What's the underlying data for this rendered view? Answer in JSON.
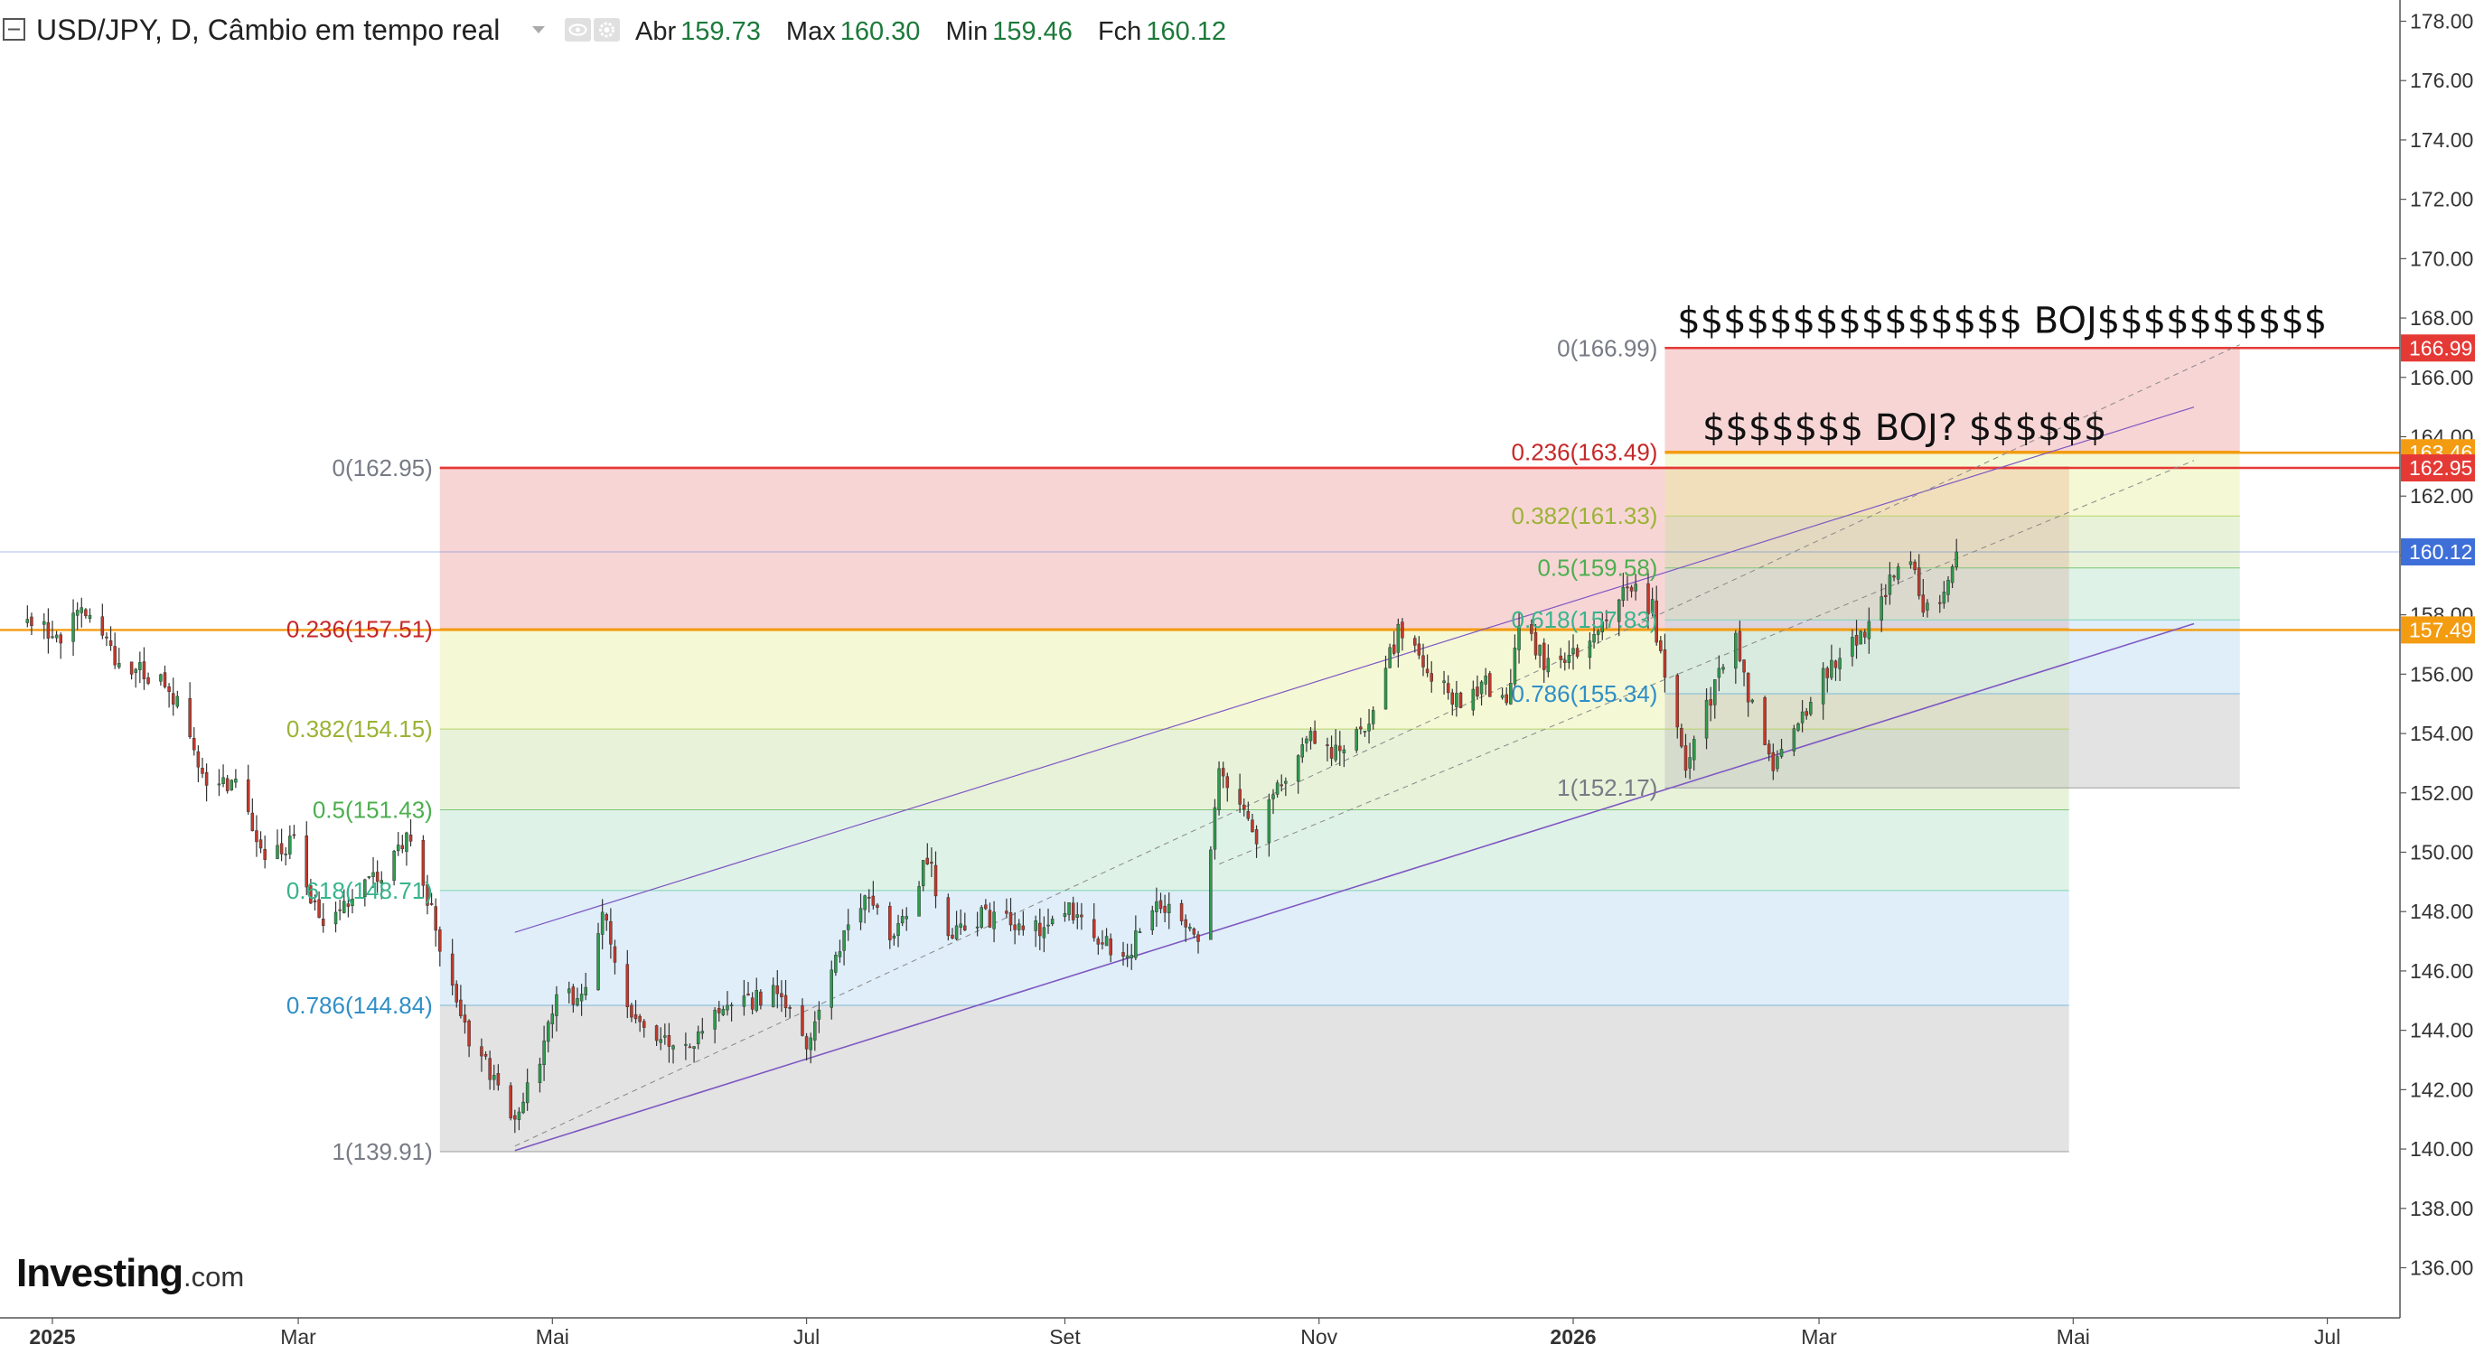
{
  "header": {
    "symbol_line": "USD/JPY, D, Câmbio em tempo real",
    "ohlc": [
      {
        "label": "Abr",
        "value": "159.73"
      },
      {
        "label": "Max",
        "value": "160.30"
      },
      {
        "label": "Min",
        "value": "159.46"
      },
      {
        "label": "Fch",
        "value": "160.12"
      }
    ],
    "collapse_icon": "minus-square-icon",
    "dropdown_icon": "caret-down-icon",
    "eye_icon": "eye-icon",
    "settings_icon": "gear-icon"
  },
  "branding": {
    "logo_main": "Investing",
    "logo_suffix": ".com"
  },
  "colors": {
    "up": "#2e9b4d",
    "down": "#c0392b",
    "wick": "#333333",
    "fib_red_line": "#e53935",
    "fib_orange_line": "#f39c12",
    "last_price": "#3e6fd8",
    "channel": "#7e57c2",
    "axis_text": "#333333"
  },
  "chart_data": {
    "type": "candlestick",
    "title": "USD/JPY, D, Câmbio em tempo real",
    "ylim": [
      135,
      179
    ],
    "y_ticks": [
      "136.00",
      "138.00",
      "140.00",
      "142.00",
      "144.00",
      "146.00",
      "148.00",
      "150.00",
      "152.00",
      "154.00",
      "156.00",
      "158.00",
      "160.00",
      "162.00",
      "164.00",
      "166.00",
      "168.00",
      "170.00",
      "172.00",
      "174.00",
      "176.00",
      "178.00"
    ],
    "x_ticks": [
      {
        "date": "2025-01-01",
        "label": "2025",
        "bold": true
      },
      {
        "date": "2025-03-01",
        "label": "Mar",
        "bold": false
      },
      {
        "date": "2025-05-01",
        "label": "Mai",
        "bold": false
      },
      {
        "date": "2025-07-01",
        "label": "Jul",
        "bold": false
      },
      {
        "date": "2025-09-01",
        "label": "Set",
        "bold": false
      },
      {
        "date": "2025-11-01",
        "label": "Nov",
        "bold": false
      },
      {
        "date": "2026-01-01",
        "label": "2026",
        "bold": true
      },
      {
        "date": "2026-03-01",
        "label": "Mar",
        "bold": false
      },
      {
        "date": "2026-05-01",
        "label": "Mai",
        "bold": false
      },
      {
        "date": "2026-07-01",
        "label": "Jul",
        "bold": false
      }
    ],
    "price_path": [
      [
        "2024-12-26",
        157.8
      ],
      [
        "2025-01-03",
        157.3
      ],
      [
        "2025-01-10",
        158.3
      ],
      [
        "2025-01-17",
        156.3
      ],
      [
        "2025-01-24",
        156.0
      ],
      [
        "2025-01-31",
        155.2
      ],
      [
        "2025-02-07",
        152.0
      ],
      [
        "2025-02-14",
        152.5
      ],
      [
        "2025-02-21",
        149.6
      ],
      [
        "2025-02-28",
        150.5
      ],
      [
        "2025-03-07",
        147.2
      ],
      [
        "2025-03-14",
        148.6
      ],
      [
        "2025-03-21",
        149.3
      ],
      [
        "2025-03-28",
        150.6
      ],
      [
        "2025-04-04",
        146.9
      ],
      [
        "2025-04-11",
        143.6
      ],
      [
        "2025-04-18",
        142.2
      ],
      [
        "2025-04-22",
        140.8
      ],
      [
        "2025-04-28",
        143.2
      ],
      [
        "2025-05-02",
        144.9
      ],
      [
        "2025-05-09",
        145.4
      ],
      [
        "2025-05-13",
        147.9
      ],
      [
        "2025-05-20",
        144.6
      ],
      [
        "2025-05-27",
        143.8
      ],
      [
        "2025-06-03",
        143.3
      ],
      [
        "2025-06-10",
        144.8
      ],
      [
        "2025-06-17",
        144.9
      ],
      [
        "2025-06-24",
        145.4
      ],
      [
        "2025-07-01",
        143.5
      ],
      [
        "2025-07-08",
        146.4
      ],
      [
        "2025-07-15",
        148.6
      ],
      [
        "2025-07-22",
        147.0
      ],
      [
        "2025-07-30",
        149.8
      ],
      [
        "2025-08-04",
        147.3
      ],
      [
        "2025-08-12",
        147.8
      ],
      [
        "2025-08-19",
        147.6
      ],
      [
        "2025-08-26",
        147.4
      ],
      [
        "2025-09-02",
        148.1
      ],
      [
        "2025-09-09",
        147.0
      ],
      [
        "2025-09-16",
        146.6
      ],
      [
        "2025-09-23",
        148.5
      ],
      [
        "2025-09-30",
        147.8
      ],
      [
        "2025-10-03",
        147.3
      ],
      [
        "2025-10-08",
        152.5
      ],
      [
        "2025-10-14",
        151.6
      ],
      [
        "2025-10-17",
        150.5
      ],
      [
        "2025-10-23",
        152.4
      ],
      [
        "2025-10-30",
        154.0
      ],
      [
        "2025-11-06",
        153.2
      ],
      [
        "2025-11-13",
        154.6
      ],
      [
        "2025-11-20",
        157.4
      ],
      [
        "2025-11-27",
        156.2
      ],
      [
        "2025-12-04",
        155.1
      ],
      [
        "2025-12-11",
        155.7
      ],
      [
        "2025-12-16",
        155.0
      ],
      [
        "2025-12-19",
        157.6
      ],
      [
        "2025-12-26",
        156.3
      ],
      [
        "2026-01-02",
        156.9
      ],
      [
        "2026-01-09",
        158.1
      ],
      [
        "2026-01-14",
        159.0
      ],
      [
        "2026-01-20",
        158.2
      ],
      [
        "2026-01-23",
        155.6
      ],
      [
        "2026-01-28",
        152.8
      ],
      [
        "2026-02-03",
        155.2
      ],
      [
        "2026-02-09",
        157.2
      ],
      [
        "2026-02-13",
        154.8
      ],
      [
        "2026-02-18",
        153.0
      ],
      [
        "2026-02-25",
        154.6
      ],
      [
        "2026-03-04",
        156.4
      ],
      [
        "2026-03-11",
        157.3
      ],
      [
        "2026-03-16",
        158.4
      ],
      [
        "2026-03-19",
        159.4
      ],
      [
        "2026-03-24",
        159.6
      ],
      [
        "2026-03-26",
        158.0
      ],
      [
        "2026-03-31",
        158.9
      ],
      [
        "2026-04-03",
        160.12
      ]
    ],
    "fib_left": {
      "x_start": "2025-04-04",
      "x_end": "2026-04-30",
      "levels": [
        {
          "ratio": "0",
          "price": 162.95,
          "label": "0(162.95)",
          "label_color": "#787b86",
          "line_color": "#e53935",
          "line_width": 2.4
        },
        {
          "ratio": "0.236",
          "price": 157.51,
          "label": "0.236(157.51)",
          "label_color": "#c62828",
          "line_color": "#f39c12",
          "line_width": 2.4
        },
        {
          "ratio": "0.382",
          "price": 154.15,
          "label": "0.382(154.15)",
          "label_color": "#9bb336",
          "line_color": "#b9d36b",
          "line_width": 1
        },
        {
          "ratio": "0.5",
          "price": 151.43,
          "label": "0.5(151.43)",
          "label_color": "#4caf50",
          "line_color": "#7cc576",
          "line_width": 1
        },
        {
          "ratio": "0.618",
          "price": 148.71,
          "label": "0.618(148.71)",
          "label_color": "#38b48c",
          "line_color": "#7fd3b5",
          "line_width": 1
        },
        {
          "ratio": "0.786",
          "price": 144.84,
          "label": "0.786(144.84)",
          "label_color": "#2f8fc7",
          "line_color": "#7fb8de",
          "line_width": 1
        },
        {
          "ratio": "1",
          "price": 139.91,
          "label": "1(139.91)",
          "label_color": "#787b86",
          "line_color": "#9e9e9e",
          "line_width": 1
        }
      ],
      "zone_colors": [
        "#ef9a9a",
        "#e6ee9c",
        "#c5e1a5",
        "#b2dfc5",
        "#b3d6ee",
        "#bdbdbd"
      ]
    },
    "fib_right": {
      "x_start": "2026-01-23",
      "x_end": "2026-06-10",
      "levels": [
        {
          "ratio": "0",
          "price": 166.99,
          "label": "0(166.99)",
          "label_color": "#787b86",
          "line_color": "#e53935",
          "line_width": 2.4
        },
        {
          "ratio": "0.236",
          "price": 163.49,
          "label": "0.236(163.49)",
          "label_color": "#c62828",
          "line_color": "#f39c12",
          "line_width": 2.4
        },
        {
          "ratio": "0.382",
          "price": 161.33,
          "label": "0.382(161.33)",
          "label_color": "#9bb336",
          "line_color": "#b9d36b",
          "line_width": 1
        },
        {
          "ratio": "0.5",
          "price": 159.58,
          "label": "0.5(159.58)",
          "label_color": "#4caf50",
          "line_color": "#7cc576",
          "line_width": 1
        },
        {
          "ratio": "0.618",
          "price": 157.83,
          "label": "0.618(157.83)",
          "label_color": "#38b48c",
          "line_color": "#7fd3b5",
          "line_width": 1
        },
        {
          "ratio": "0.786",
          "price": 155.34,
          "label": "0.786(155.34)",
          "label_color": "#2f8fc7",
          "line_color": "#7fb8de",
          "line_width": 1
        },
        {
          "ratio": "1",
          "price": 152.17,
          "label": "1(152.17)",
          "label_color": "#787b86",
          "line_color": "#9e9e9e",
          "line_width": 1
        }
      ],
      "zone_colors": [
        "#ef9a9a",
        "#e6ee9c",
        "#c5e1a5",
        "#b2dfc5",
        "#b3d6ee",
        "#bdbdbd"
      ]
    },
    "channel": {
      "lower": [
        [
          "2025-04-22",
          139.95
        ],
        [
          "2026-05-30",
          157.7
        ]
      ],
      "upper": [
        [
          "2025-04-22",
          147.3
        ],
        [
          "2026-05-30",
          165.0
        ]
      ],
      "mid": [
        [
          "2025-04-22",
          140.1
        ],
        [
          "2026-06-10",
          167.1
        ]
      ],
      "mid2": [
        [
          "2025-10-08",
          149.6
        ],
        [
          "2026-05-30",
          163.2
        ]
      ]
    },
    "annotations": [
      {
        "text": "$$$$$$$$$$$$$$$ BOJ$$$$$$$$$$",
        "date": "2026-01-26",
        "price": 167.5
      },
      {
        "text": "$$$$$$$ BOJ? $$$$$$",
        "date": "2026-02-01",
        "price": 163.9
      }
    ],
    "right_axis_badges": [
      {
        "value": "166.99",
        "color": "#e53935"
      },
      {
        "value": "163.46",
        "color": "#f39c12"
      },
      {
        "value": "162.95",
        "color": "#e53935"
      },
      {
        "value": "160.12",
        "color": "#3e6fd8"
      },
      {
        "value": "157.49",
        "color": "#f39c12"
      }
    ],
    "last_price": 160.12,
    "horizontal_lines": [
      {
        "price": 162.95,
        "color": "#e53935"
      },
      {
        "price": 157.49,
        "color": "#f39c12"
      },
      {
        "price": 163.46,
        "color": "#f39c12"
      },
      {
        "price": 166.99,
        "color": "#e53935"
      }
    ]
  }
}
